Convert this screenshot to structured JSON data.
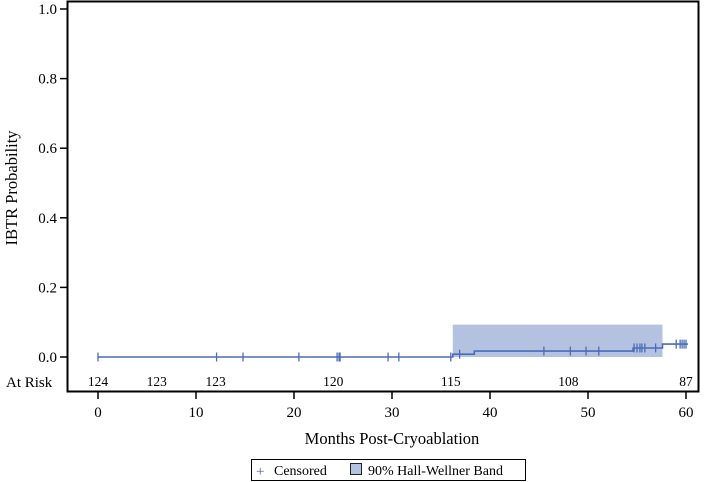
{
  "chart_data": {
    "type": "line",
    "subtype": "kaplan-meier-cumulative-incidence",
    "title": "",
    "xlabel": "Months Post-Cryoablation",
    "ylabel": "IBTR Probability",
    "xlim": [
      0,
      60
    ],
    "ylim": [
      0,
      1.0
    ],
    "x_ticks": [
      0,
      10,
      20,
      30,
      40,
      50,
      60
    ],
    "x_tick_labels": [
      "0",
      "10",
      "20",
      "30",
      "40",
      "50",
      "60"
    ],
    "y_ticks": [
      0.0,
      0.2,
      0.4,
      0.6,
      0.8,
      1.0
    ],
    "y_tick_labels": [
      "0.0",
      "0.2",
      "0.4",
      "0.6",
      "0.8",
      "1.0"
    ],
    "grid": false,
    "series": [
      {
        "name": "IBTR Probability",
        "color": "#4a6cb8",
        "step_points": [
          {
            "x": 0,
            "y": 0.0
          },
          {
            "x": 36.2,
            "y": 0.0
          },
          {
            "x": 36.2,
            "y": 0.008
          },
          {
            "x": 38.4,
            "y": 0.008
          },
          {
            "x": 38.4,
            "y": 0.017
          },
          {
            "x": 54.6,
            "y": 0.017
          },
          {
            "x": 54.6,
            "y": 0.026
          },
          {
            "x": 57.6,
            "y": 0.026
          },
          {
            "x": 57.6,
            "y": 0.037
          },
          {
            "x": 60.2,
            "y": 0.037
          }
        ],
        "censored_x": [
          0,
          12.1,
          14.8,
          20.5,
          24.4,
          24.6,
          24.7,
          29.6,
          30.7,
          36.0,
          36.9,
          45.5,
          48.2,
          49.8,
          51.1,
          54.7,
          55.0,
          55.3,
          55.5,
          55.8,
          56.9,
          59.0,
          59.4,
          59.6,
          59.8,
          60.0
        ]
      }
    ],
    "band": {
      "name": "90% Hall-Wellner Band",
      "color": "#b4c2e2",
      "x_start": 36.2,
      "x_end": 57.6,
      "y_lower": 0.0,
      "y_upper": 0.093
    },
    "at_risk": {
      "label": "At Risk",
      "x": [
        0,
        6,
        12,
        24,
        36,
        48,
        60
      ],
      "counts": [
        "124",
        "123",
        "123",
        "120",
        "115",
        "108",
        "87"
      ]
    },
    "legend": {
      "position": "bottom",
      "entries": [
        {
          "symbol": "+",
          "label": "Censored"
        },
        {
          "symbol": "square",
          "label": "90% Hall-Wellner Band"
        }
      ]
    }
  },
  "labels": {
    "xlabel": "Months Post-Cryoablation",
    "ylabel": "IBTR Probability",
    "at_risk": "At Risk",
    "legend_censored": "Censored",
    "legend_band": "90% Hall-Wellner Band",
    "legend_censored_symbol": "+"
  }
}
